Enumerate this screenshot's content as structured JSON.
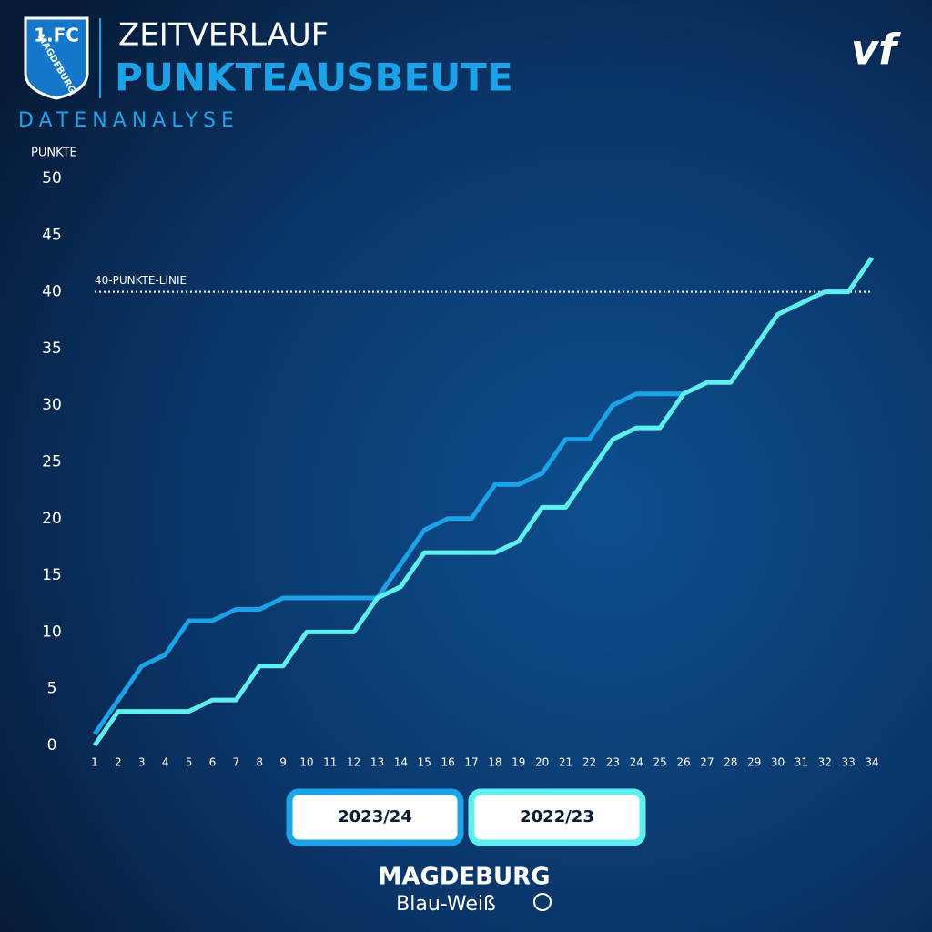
{
  "header": {
    "logo_top": "1.FC",
    "logo_bottom": "MAGDEBURG",
    "overline": "ZEITVERLAUF",
    "title": "PUNKTEAUSBEUTE",
    "subtitle": "DATENANALYSE",
    "brand": "vf"
  },
  "chart_data": {
    "type": "line",
    "y_label": "PUNKTE",
    "x": [
      1,
      2,
      3,
      4,
      5,
      6,
      7,
      8,
      9,
      10,
      11,
      12,
      13,
      14,
      15,
      16,
      17,
      18,
      19,
      20,
      21,
      22,
      23,
      24,
      25,
      26,
      27,
      28,
      29,
      30,
      31,
      32,
      33,
      34
    ],
    "xlim": [
      1,
      34
    ],
    "xticks": [
      1,
      2,
      3,
      4,
      5,
      6,
      7,
      8,
      9,
      10,
      11,
      12,
      13,
      14,
      15,
      16,
      17,
      18,
      19,
      20,
      21,
      22,
      23,
      24,
      25,
      26,
      27,
      28,
      29,
      30,
      31,
      32,
      33,
      34
    ],
    "ylim": [
      0,
      50
    ],
    "yticks": [
      0,
      5,
      10,
      15,
      20,
      25,
      30,
      35,
      40,
      45,
      50
    ],
    "reference_line": {
      "value": 40,
      "label": "40-PUNKTE-LINIE"
    },
    "series": [
      {
        "name": "2023/24",
        "color": "#1aa3e8",
        "values": [
          1,
          4,
          7,
          8,
          11,
          11,
          12,
          12,
          13,
          13,
          13,
          13,
          13,
          16,
          19,
          20,
          20,
          23,
          23,
          24,
          27,
          27,
          30,
          31,
          31,
          31,
          null,
          null,
          null,
          null,
          null,
          null,
          null,
          null
        ]
      },
      {
        "name": "2022/23",
        "color": "#5ef0f0",
        "values": [
          0,
          3,
          3,
          3,
          3,
          4,
          4,
          7,
          7,
          10,
          10,
          10,
          13,
          14,
          17,
          17,
          17,
          17,
          18,
          21,
          21,
          24,
          27,
          28,
          28,
          31,
          32,
          32,
          35,
          38,
          39,
          40,
          40,
          43
        ]
      }
    ]
  },
  "footer": {
    "brand": "MAGDEBURG",
    "tagline": "Blau-Weiß"
  }
}
